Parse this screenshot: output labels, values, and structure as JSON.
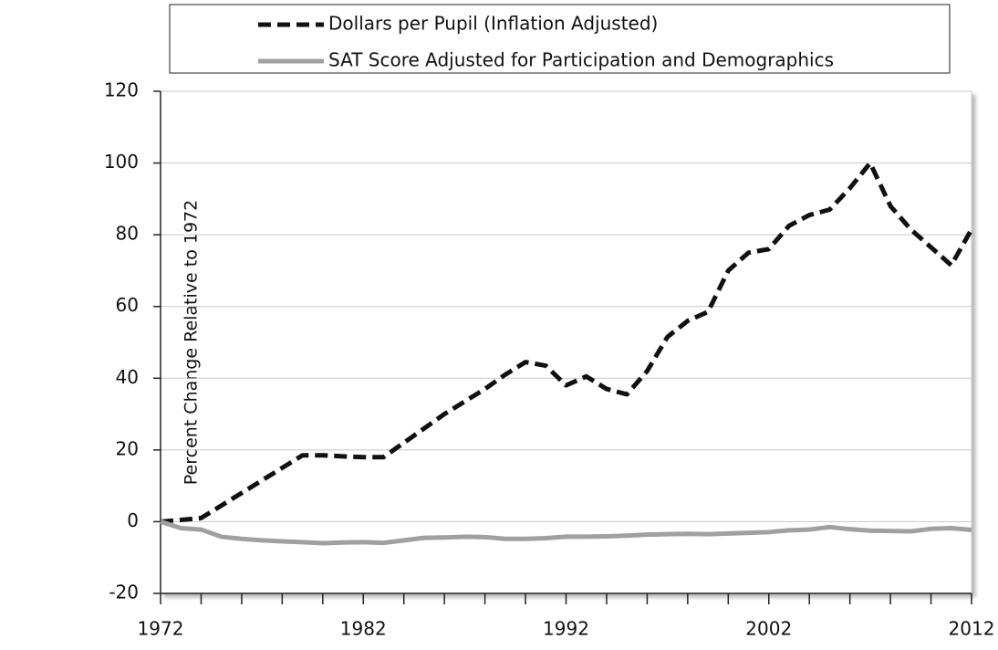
{
  "chart_data": {
    "type": "line",
    "y_label": "Percent Change Relative to 1972",
    "x": [
      1972,
      1973,
      1974,
      1975,
      1976,
      1977,
      1978,
      1979,
      1980,
      1981,
      1982,
      1983,
      1984,
      1985,
      1986,
      1987,
      1988,
      1989,
      1990,
      1991,
      1992,
      1993,
      1994,
      1995,
      1996,
      1997,
      1998,
      1999,
      2000,
      2001,
      2002,
      2003,
      2004,
      2005,
      2006,
      2007,
      2008,
      2009,
      2010,
      2011,
      2012
    ],
    "series": [
      {
        "name": "Dollars per Pupil (Inflation Adjusted)",
        "color": "#111111",
        "dash": true,
        "values": [
          0,
          0.5,
          1,
          4.5,
          8,
          11.5,
          15,
          18.5,
          18.5,
          18.2,
          18,
          18,
          22,
          26,
          30,
          33.5,
          37,
          41,
          44.5,
          43.5,
          38,
          40.5,
          37,
          35.5,
          42,
          51.5,
          56,
          58.5,
          70,
          75,
          76,
          82.5,
          85.5,
          87,
          93,
          100,
          88,
          81.5,
          76.5,
          71.5,
          81.5
        ]
      },
      {
        "name": "SAT Score Adjusted for Participation and Demographics",
        "color": "#a0a0a0",
        "dash": false,
        "values": [
          0,
          -1.8,
          -2.2,
          -4.2,
          -4.8,
          -5.2,
          -5.5,
          -5.7,
          -6,
          -5.8,
          -5.7,
          -5.9,
          -5.2,
          -4.5,
          -4.4,
          -4.2,
          -4.3,
          -4.8,
          -4.8,
          -4.6,
          -4.2,
          -4.2,
          -4.1,
          -3.9,
          -3.6,
          -3.5,
          -3.4,
          -3.5,
          -3.3,
          -3.1,
          -2.9,
          -2.4,
          -2.2,
          -1.5,
          -2.1,
          -2.5,
          -2.6,
          -2.7,
          -2,
          -1.8,
          -2.3
        ]
      }
    ],
    "xlim": [
      1972,
      2012
    ],
    "xticks": [
      1972,
      1982,
      1992,
      2002,
      2012
    ],
    "ylim": [
      -20,
      120
    ],
    "yticks": [
      -20,
      0,
      20,
      40,
      60,
      80,
      100,
      120
    ],
    "grid": true,
    "legend": "top"
  }
}
